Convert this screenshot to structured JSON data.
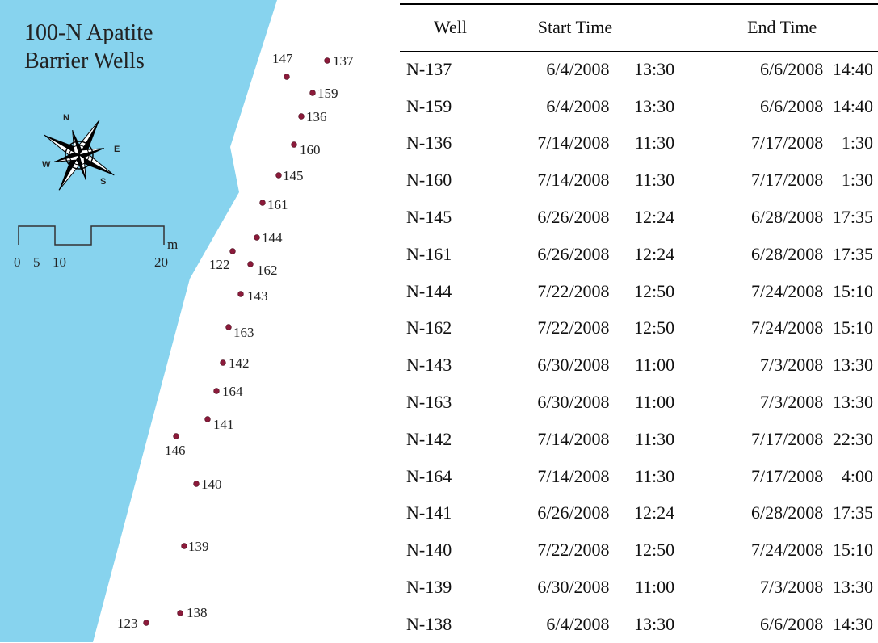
{
  "map": {
    "title_line1": "100-N Apatite",
    "title_line2": "Barrier Wells",
    "scale_bar": {
      "ticks": [
        "0",
        "5",
        "10",
        "20"
      ],
      "unit": "m"
    },
    "compass": {
      "labels": {
        "n": "N",
        "e": "E",
        "s": "S",
        "w": "W"
      }
    },
    "colors": {
      "water": "#87d3ee",
      "well_marker": "#8b1a3a"
    },
    "wells": [
      "147",
      "137",
      "159",
      "136",
      "160",
      "145",
      "161",
      "144",
      "122",
      "162",
      "143",
      "163",
      "142",
      "164",
      "141",
      "146",
      "140",
      "139",
      "138",
      "123"
    ]
  },
  "table": {
    "headers": {
      "well": "Well",
      "start": "Start Time",
      "end": "End Time"
    },
    "rows": [
      {
        "well": "N-137",
        "start_date": "6/4/2008",
        "start_time": "13:30",
        "end_date": "6/6/2008",
        "end_time": "14:40"
      },
      {
        "well": "N-159",
        "start_date": "6/4/2008",
        "start_time": "13:30",
        "end_date": "6/6/2008",
        "end_time": "14:40"
      },
      {
        "well": "N-136",
        "start_date": "7/14/2008",
        "start_time": "11:30",
        "end_date": "7/17/2008",
        "end_time": "1:30"
      },
      {
        "well": "N-160",
        "start_date": "7/14/2008",
        "start_time": "11:30",
        "end_date": "7/17/2008",
        "end_time": "1:30"
      },
      {
        "well": "N-145",
        "start_date": "6/26/2008",
        "start_time": "12:24",
        "end_date": "6/28/2008",
        "end_time": "17:35"
      },
      {
        "well": "N-161",
        "start_date": "6/26/2008",
        "start_time": "12:24",
        "end_date": "6/28/2008",
        "end_time": "17:35"
      },
      {
        "well": "N-144",
        "start_date": "7/22/2008",
        "start_time": "12:50",
        "end_date": "7/24/2008",
        "end_time": "15:10"
      },
      {
        "well": "N-162",
        "start_date": "7/22/2008",
        "start_time": "12:50",
        "end_date": "7/24/2008",
        "end_time": "15:10"
      },
      {
        "well": "N-143",
        "start_date": "6/30/2008",
        "start_time": "11:00",
        "end_date": "7/3/2008",
        "end_time": "13:30"
      },
      {
        "well": "N-163",
        "start_date": "6/30/2008",
        "start_time": "11:00",
        "end_date": "7/3/2008",
        "end_time": "13:30"
      },
      {
        "well": "N-142",
        "start_date": "7/14/2008",
        "start_time": "11:30",
        "end_date": "7/17/2008",
        "end_time": "22:30"
      },
      {
        "well": "N-164",
        "start_date": "7/14/2008",
        "start_time": "11:30",
        "end_date": "7/17/2008",
        "end_time": "4:00"
      },
      {
        "well": "N-141",
        "start_date": "6/26/2008",
        "start_time": "12:24",
        "end_date": "6/28/2008",
        "end_time": "17:35"
      },
      {
        "well": "N-140",
        "start_date": "7/22/2008",
        "start_time": "12:50",
        "end_date": "7/24/2008",
        "end_time": "15:10"
      },
      {
        "well": "N-139",
        "start_date": "6/30/2008",
        "start_time": "11:00",
        "end_date": "7/3/2008",
        "end_time": "13:30"
      },
      {
        "well": "N-138",
        "start_date": "6/4/2008",
        "start_time": "13:30",
        "end_date": "6/6/2008",
        "end_time": "14:30"
      }
    ]
  }
}
